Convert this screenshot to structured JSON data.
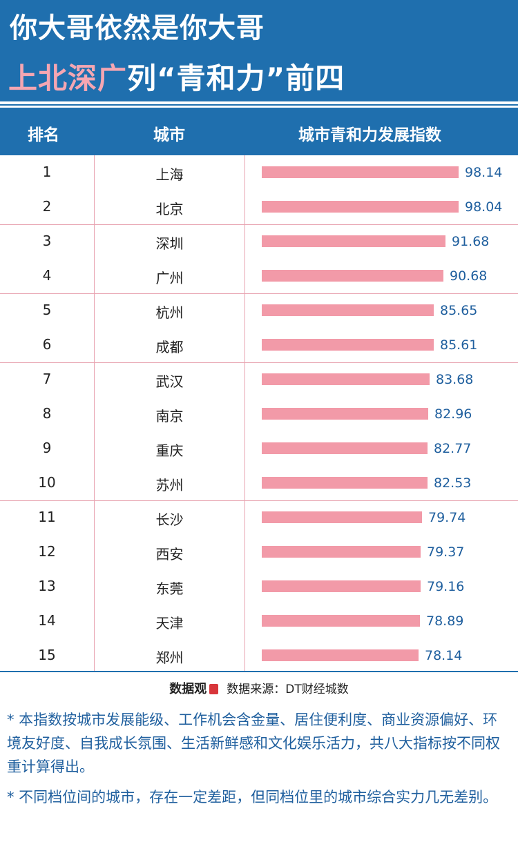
{
  "header": {
    "line1": "你大哥依然是你大哥",
    "line2_highlight": "上北深广",
    "line2_rest": "列“青和力”前四",
    "accent_color": "#1f6fae",
    "highlight_color": "#f5a6b2"
  },
  "table": {
    "col_rank": "排名",
    "col_city": "城市",
    "col_index": "城市青和力发展指数"
  },
  "chart_data": {
    "type": "bar",
    "categories": [
      "上海",
      "北京",
      "深圳",
      "广州",
      "杭州",
      "成都",
      "武汉",
      "南京",
      "重庆",
      "苏州",
      "长沙",
      "西安",
      "东莞",
      "天津",
      "郑州"
    ],
    "ranks": [
      "1",
      "2",
      "3",
      "4",
      "5",
      "6",
      "7",
      "8",
      "9",
      "10",
      "11",
      "12",
      "13",
      "14",
      "15"
    ],
    "values": [
      98.14,
      98.04,
      91.68,
      90.68,
      85.65,
      85.61,
      83.68,
      82.96,
      82.77,
      82.53,
      79.74,
      79.37,
      79.16,
      78.89,
      78.14
    ],
    "value_labels": [
      "98.14",
      "98.04",
      "91.68",
      "90.68",
      "85.65",
      "85.61",
      "83.68",
      "82.96",
      "82.77",
      "82.53",
      "79.74",
      "79.37",
      "79.16",
      "78.89",
      "78.14"
    ],
    "tier_sizes": [
      2,
      2,
      2,
      4,
      5
    ],
    "bar_color": "#f29aa8",
    "label_color": "#1f5f9e",
    "orientation": "horizontal"
  },
  "footer": {
    "logo_text": "数据观",
    "source_text": "数据来源：DT财经城数"
  },
  "notes": [
    "* 本指数按城市发展能级、工作机会含金量、居住便利度、商业资源偏好、环境友好度、自我成长氛围、生活新鲜感和文化娱乐活力，共八大指标按不同权重计算得出。",
    "* 不同档位间的城市，存在一定差距，但同档位里的城市综合实力几无差别。"
  ]
}
